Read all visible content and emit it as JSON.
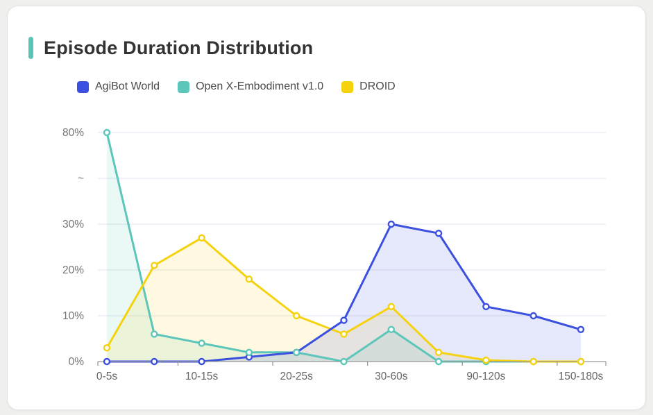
{
  "card": {
    "title": "Episode Duration Distribution",
    "accent_color": "#5cc5ba"
  },
  "chart_data": {
    "type": "line",
    "title": "Episode Duration Distribution",
    "xlabel": "",
    "ylabel": "",
    "y_unit": "%",
    "grid": true,
    "area_fill": true,
    "legend_position": "top",
    "marker": "open-circle",
    "y_axis_break": {
      "between": [
        30,
        80
      ],
      "symbol": "~"
    },
    "y_tick_labels": [
      "0%",
      "10%",
      "20%",
      "30%",
      "~",
      "80%"
    ],
    "y_tick_values": [
      0,
      10,
      20,
      30,
      80
    ],
    "categories": [
      "0-5s",
      "",
      "10-15s",
      "",
      "20-25s",
      "",
      "30-60s",
      "",
      "90-120s",
      "",
      "150-180s"
    ],
    "visible_x_labels": [
      "0-5s",
      "10-15s",
      "20-25s",
      "30-60s",
      "90-120s",
      "150-180s"
    ],
    "series": [
      {
        "name": "AgiBot World",
        "color": "#3c50e0",
        "values": [
          0,
          0,
          0,
          1,
          2,
          9,
          30,
          28,
          12,
          10,
          7
        ]
      },
      {
        "name": "Open X-Embodiment v1.0",
        "color": "#5cc6ba",
        "values": [
          80,
          6,
          4,
          2,
          2,
          0,
          7,
          0,
          0,
          0,
          0
        ]
      },
      {
        "name": "DROID",
        "color": "#f5d20e",
        "values": [
          3,
          21,
          27,
          18,
          10,
          6,
          12,
          2,
          0.3,
          0,
          0
        ]
      }
    ]
  },
  "colors": {
    "grid_line": "#e9edf4",
    "axis_line": "#999999",
    "axis_text": "#757575",
    "title_text": "#333333",
    "legend_text": "#4a4a4a",
    "card_bg": "#ffffff",
    "page_bg": "#f0f0ee"
  }
}
